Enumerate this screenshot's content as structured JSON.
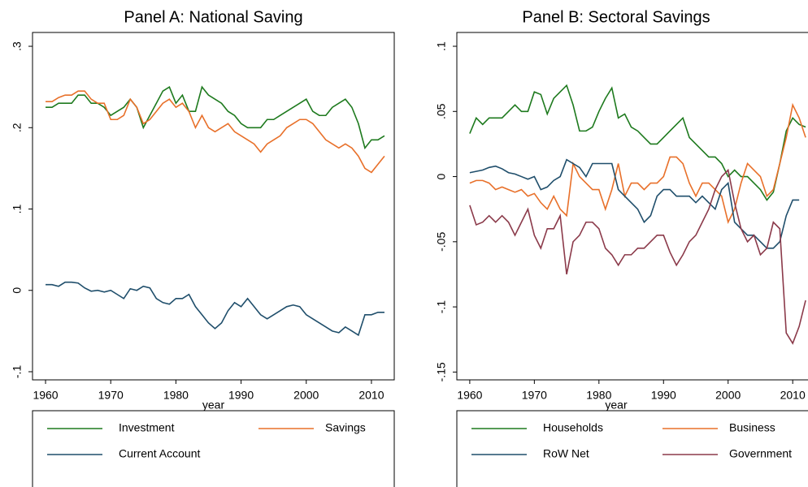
{
  "chart_data": [
    {
      "type": "line",
      "title": "Panel A: National Saving",
      "xlabel": "year",
      "x": [
        1960,
        1961,
        1962,
        1963,
        1964,
        1965,
        1966,
        1967,
        1968,
        1969,
        1970,
        1971,
        1972,
        1973,
        1974,
        1975,
        1976,
        1977,
        1978,
        1979,
        1980,
        1981,
        1982,
        1983,
        1984,
        1985,
        1986,
        1987,
        1988,
        1989,
        1990,
        1991,
        1992,
        1993,
        1994,
        1995,
        1996,
        1997,
        1998,
        1999,
        2000,
        2001,
        2002,
        2003,
        2004,
        2005,
        2006,
        2007,
        2008,
        2009,
        2010,
        2011,
        2012
      ],
      "series": [
        {
          "name": "Investment",
          "color": "#1e7a1e",
          "values": [
            0.225,
            0.225,
            0.23,
            0.23,
            0.23,
            0.24,
            0.24,
            0.23,
            0.23,
            0.225,
            0.215,
            0.22,
            0.225,
            0.235,
            0.225,
            0.2,
            0.215,
            0.23,
            0.245,
            0.25,
            0.23,
            0.24,
            0.22,
            0.22,
            0.25,
            0.24,
            0.235,
            0.23,
            0.22,
            0.215,
            0.205,
            0.2,
            0.2,
            0.2,
            0.21,
            0.21,
            0.215,
            0.22,
            0.225,
            0.23,
            0.235,
            0.22,
            0.215,
            0.215,
            0.225,
            0.23,
            0.235,
            0.225,
            0.205,
            0.175,
            0.185,
            0.185,
            0.19
          ]
        },
        {
          "name": "Savings",
          "color": "#e8702a",
          "values": [
            0.232,
            0.232,
            0.237,
            0.24,
            0.24,
            0.245,
            0.245,
            0.235,
            0.23,
            0.23,
            0.21,
            0.21,
            0.215,
            0.235,
            0.225,
            0.205,
            0.21,
            0.22,
            0.23,
            0.235,
            0.225,
            0.23,
            0.22,
            0.2,
            0.215,
            0.2,
            0.195,
            0.2,
            0.205,
            0.195,
            0.19,
            0.185,
            0.18,
            0.17,
            0.18,
            0.185,
            0.19,
            0.2,
            0.205,
            0.21,
            0.21,
            0.205,
            0.195,
            0.185,
            0.18,
            0.175,
            0.18,
            0.175,
            0.165,
            0.15,
            0.145,
            0.155,
            0.165
          ]
        },
        {
          "name": "Current Account",
          "color": "#1f4e6b",
          "values": [
            0.007,
            0.007,
            0.005,
            0.01,
            0.01,
            0.009,
            0.003,
            -0.001,
            0,
            -0.002,
            0,
            -0.005,
            -0.01,
            0.002,
            0,
            0.005,
            0.003,
            -0.01,
            -0.015,
            -0.017,
            -0.01,
            -0.01,
            -0.005,
            -0.02,
            -0.03,
            -0.04,
            -0.047,
            -0.04,
            -0.025,
            -0.015,
            -0.02,
            -0.01,
            -0.02,
            -0.03,
            -0.035,
            -0.03,
            -0.025,
            -0.02,
            -0.018,
            -0.02,
            -0.03,
            -0.035,
            -0.04,
            -0.045,
            -0.05,
            -0.052,
            -0.045,
            -0.05,
            -0.055,
            -0.03,
            -0.03,
            -0.027,
            -0.027
          ]
        }
      ],
      "xlim": [
        1958,
        2013.5
      ],
      "xticks": [
        1960,
        1970,
        1980,
        1990,
        2000,
        2010
      ],
      "ylim": [
        -0.11,
        0.317
      ],
      "yticks": [
        {
          "value": -0.1,
          "label": "-.1"
        },
        0,
        {
          "value": 0.1,
          "label": ".1"
        },
        {
          "value": 0.2,
          "label": ".2"
        },
        {
          "value": 0.3,
          "label": ".3"
        }
      ]
    },
    {
      "type": "line",
      "title": "Panel B: Sectoral Savings",
      "xlabel": "year",
      "x": [
        1960,
        1961,
        1962,
        1963,
        1964,
        1965,
        1966,
        1967,
        1968,
        1969,
        1970,
        1971,
        1972,
        1973,
        1974,
        1975,
        1976,
        1977,
        1978,
        1979,
        1980,
        1981,
        1982,
        1983,
        1984,
        1985,
        1986,
        1987,
        1988,
        1989,
        1990,
        1991,
        1992,
        1993,
        1994,
        1995,
        1996,
        1997,
        1998,
        1999,
        2000,
        2001,
        2002,
        2003,
        2004,
        2005,
        2006,
        2007,
        2008,
        2009,
        2010,
        2011,
        2012
      ],
      "series": [
        {
          "name": "Households",
          "color": "#1e7a1e",
          "values": [
            0.033,
            0.045,
            0.04,
            0.045,
            0.045,
            0.045,
            0.05,
            0.055,
            0.05,
            0.05,
            0.065,
            0.063,
            0.048,
            0.06,
            0.065,
            0.07,
            0.055,
            0.035,
            0.035,
            0.038,
            0.05,
            0.06,
            0.068,
            0.045,
            0.048,
            0.038,
            0.035,
            0.03,
            0.025,
            0.025,
            0.03,
            0.035,
            0.04,
            0.045,
            0.03,
            0.025,
            0.02,
            0.015,
            0.015,
            0.01,
            0,
            0.005,
            0,
            0,
            -0.005,
            -0.01,
            -0.018,
            -0.012,
            0.01,
            0.035,
            0.045,
            0.04,
            0.038
          ]
        },
        {
          "name": "Business",
          "color": "#e8702a",
          "values": [
            -0.005,
            -0.003,
            -0.003,
            -0.005,
            -0.01,
            -0.008,
            -0.01,
            -0.012,
            -0.01,
            -0.015,
            -0.013,
            -0.02,
            -0.025,
            -0.015,
            -0.025,
            -0.03,
            0.01,
            0,
            -0.005,
            -0.01,
            -0.01,
            -0.025,
            -0.01,
            0.01,
            -0.015,
            -0.005,
            -0.005,
            -0.01,
            -0.005,
            -0.005,
            0,
            0.015,
            0.015,
            0.01,
            -0.005,
            -0.015,
            -0.005,
            -0.005,
            -0.01,
            -0.015,
            -0.035,
            -0.025,
            -0.005,
            0.01,
            0.005,
            0,
            -0.015,
            -0.01,
            0.01,
            0.03,
            0.055,
            0.045,
            0.03
          ]
        },
        {
          "name": "RoW Net",
          "color": "#1f4e6b",
          "values": [
            0.003,
            0.004,
            0.005,
            0.007,
            0.008,
            0.006,
            0.003,
            0.002,
            0,
            -0.002,
            0,
            -0.01,
            -0.008,
            -0.003,
            0,
            0.013,
            0.01,
            0.007,
            0,
            0.01,
            0.01,
            0.01,
            0.01,
            -0.01,
            -0.015,
            -0.02,
            -0.025,
            -0.035,
            -0.03,
            -0.015,
            -0.01,
            -0.01,
            -0.015,
            -0.015,
            -0.015,
            -0.02,
            -0.015,
            -0.02,
            -0.025,
            -0.01,
            -0.005,
            -0.035,
            -0.04,
            -0.045,
            -0.045,
            -0.05,
            -0.055,
            -0.055,
            -0.05,
            -0.03,
            -0.018,
            -0.018,
            null
          ]
        },
        {
          "name": "Government",
          "color": "#8b3a4a",
          "values": [
            -0.022,
            -0.037,
            -0.035,
            -0.03,
            -0.035,
            -0.03,
            -0.035,
            -0.045,
            -0.035,
            -0.025,
            -0.045,
            -0.055,
            -0.04,
            -0.04,
            -0.03,
            -0.075,
            -0.05,
            -0.045,
            -0.035,
            -0.035,
            -0.04,
            -0.055,
            -0.06,
            -0.068,
            -0.06,
            -0.06,
            -0.055,
            -0.055,
            -0.05,
            -0.045,
            -0.045,
            -0.058,
            -0.068,
            -0.06,
            -0.05,
            -0.045,
            -0.035,
            -0.025,
            -0.01,
            0,
            0.005,
            -0.02,
            -0.04,
            -0.05,
            -0.045,
            -0.06,
            -0.055,
            -0.035,
            -0.04,
            -0.12,
            -0.128,
            -0.115,
            -0.095
          ]
        }
      ],
      "xlim": [
        1958,
        2013.5
      ],
      "xticks": [
        1960,
        1970,
        1980,
        1990,
        2000,
        2010
      ],
      "ylim": [
        -0.156,
        0.1106
      ],
      "yticks": [
        {
          "value": -0.15,
          "label": "-.15"
        },
        {
          "value": -0.1,
          "label": "-.1"
        },
        {
          "value": -0.05,
          "label": "-.05"
        },
        0,
        {
          "value": 0.05,
          "label": ".05"
        },
        {
          "value": 0.1,
          "label": ".1"
        }
      ]
    }
  ]
}
